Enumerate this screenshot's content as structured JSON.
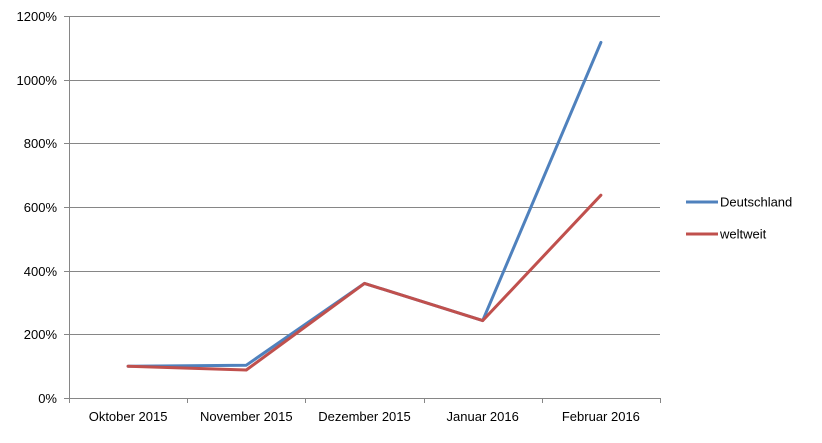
{
  "chart_data": {
    "type": "line",
    "title": "",
    "xlabel": "",
    "ylabel": "",
    "categories": [
      "Oktober 2015",
      "November 2015",
      "Dezember 2015",
      "Januar 2016",
      "Februar 2016"
    ],
    "ylim": [
      0,
      1200
    ],
    "yticks": [
      0,
      200,
      400,
      600,
      800,
      1000,
      1200
    ],
    "ytick_labels": [
      "0%",
      "200%",
      "400%",
      "600%",
      "800%",
      "1000%",
      "1200%"
    ],
    "grid": "horizontal",
    "legend_position": "right",
    "series": [
      {
        "name": "Deutschland",
        "color": "#4F81BD",
        "values": [
          100,
          103,
          360,
          243,
          1117
        ]
      },
      {
        "name": "weltweit",
        "color": "#C0504D",
        "values": [
          100,
          88,
          360,
          243,
          637
        ]
      }
    ]
  }
}
